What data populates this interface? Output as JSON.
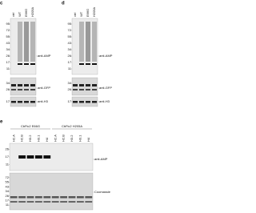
{
  "panels": [
    {
      "letter": "c",
      "lanes": [
        "ctrl",
        "WT",
        "E66G",
        "H205A"
      ],
      "blots": [
        {
          "label": "anti-AMP",
          "markers": [
            "95",
            "72",
            "55",
            "43",
            "34",
            "26",
            "17",
            "11"
          ]
        },
        {
          "label": "anti-GFP",
          "markers": [
            "34",
            "26"
          ]
        },
        {
          "label": "anti-H3",
          "markers": [
            "17"
          ]
        }
      ]
    },
    {
      "letter": "d",
      "lanes": [
        "ctrl",
        "WT",
        "E66G",
        "H205A"
      ],
      "blots": [
        {
          "label": "anti-AMP",
          "markers": [
            "95",
            "72",
            "55",
            "43",
            "34",
            "26",
            "17",
            "11"
          ]
        },
        {
          "label": "anti-GFP",
          "markers": [
            "34",
            "26"
          ]
        },
        {
          "label": "anti-H3",
          "markers": [
            "17"
          ]
        }
      ]
    }
  ],
  "panel_e": {
    "letter": "e",
    "groups": [
      {
        "name": "CbFic2 E66G",
        "lanes": [
          "H2.A",
          "H2.B",
          "H3.2",
          "H3.1",
          "H4"
        ]
      },
      {
        "name": "CbFic2 H205A",
        "lanes": [
          "H2.A",
          "H2.B",
          "H3.2",
          "H3.1",
          "H4"
        ]
      }
    ],
    "blots": [
      {
        "label": "anti-AMP",
        "markers": [
          "26",
          "17",
          "11"
        ]
      },
      {
        "label": "Coomassie",
        "markers": [
          "72",
          "55",
          "43",
          "34",
          "26",
          "17",
          "11"
        ]
      }
    ]
  }
}
